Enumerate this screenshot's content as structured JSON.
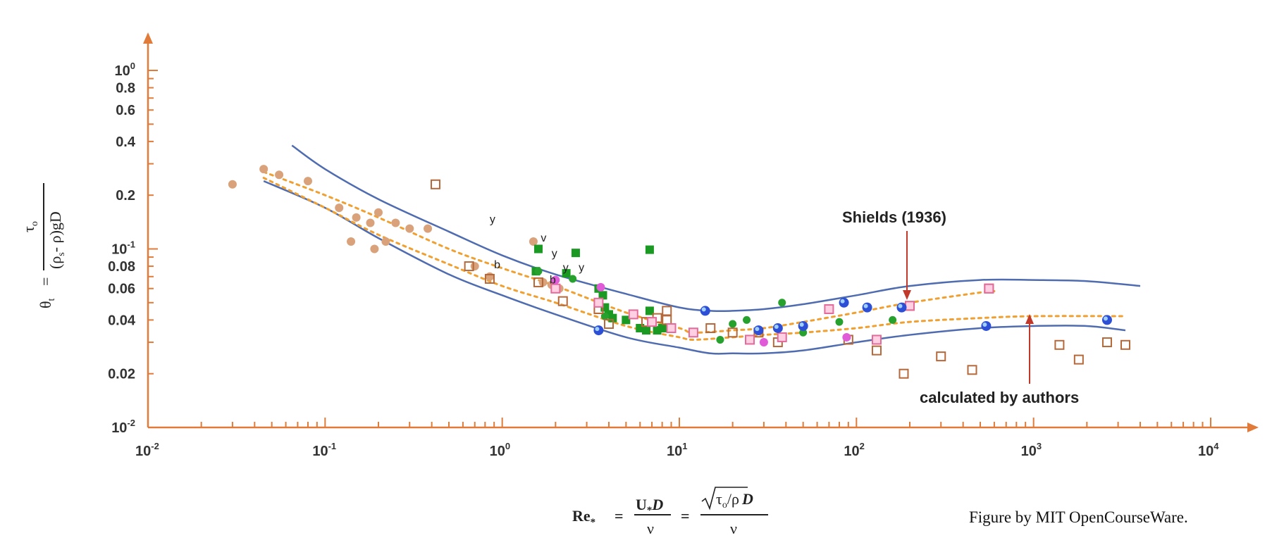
{
  "chart_data": {
    "type": "scatter",
    "title": "",
    "x_scale": "log",
    "y_scale": "log",
    "xlim": [
      0.01,
      10000
    ],
    "ylim": [
      0.01,
      1.0
    ],
    "x_ticks": [
      {
        "value": 0.01,
        "base": "10",
        "exp": "-2"
      },
      {
        "value": 0.1,
        "base": "10",
        "exp": "-1"
      },
      {
        "value": 1,
        "base": "10",
        "exp": "0"
      },
      {
        "value": 10,
        "base": "10",
        "exp": "1"
      },
      {
        "value": 100,
        "base": "10",
        "exp": "2"
      },
      {
        "value": 1000,
        "base": "10",
        "exp": "3"
      },
      {
        "value": 10000,
        "base": "10",
        "exp": "4"
      }
    ],
    "y_ticks": [
      {
        "value": 1.0,
        "base": "10",
        "exp": "0"
      },
      {
        "value": 0.8,
        "label": "0.8"
      },
      {
        "value": 0.6,
        "label": "0.6"
      },
      {
        "value": 0.4,
        "label": "0.4"
      },
      {
        "value": 0.2,
        "label": "0.2"
      },
      {
        "value": 0.1,
        "base": "10",
        "exp": "-1"
      },
      {
        "value": 0.08,
        "label": "0.08"
      },
      {
        "value": 0.06,
        "label": "0.06"
      },
      {
        "value": 0.04,
        "label": "0.04"
      },
      {
        "value": 0.02,
        "label": "0.02"
      },
      {
        "value": 0.01,
        "base": "10",
        "exp": "-2"
      }
    ],
    "xlabel": {
      "lhs": "Re",
      "lhs_sub": "*",
      "eq": "=",
      "frac1_num": "U",
      "frac1_num_sub": "*",
      "frac1_num_rest": "D",
      "frac1_den": "ν",
      "frac2_num_a": "τ",
      "frac2_num_a_sub": "o",
      "frac2_num_b": "/ρ",
      "frac2_num_c": "D",
      "frac2_den": "ν"
    },
    "ylabel": {
      "lhs": "θ",
      "lhs_sub": "t",
      "eq": "=",
      "num": "τ",
      "num_sub": "o",
      "den_a": "(ρ",
      "den_a_sub": "s",
      "den_b": "- ρ)gD"
    },
    "annotations": [
      {
        "text": "Shields (1936)",
        "x": 190,
        "y": 0.052
      },
      {
        "text": "calculated by authors",
        "x": 1000,
        "y": 0.043
      }
    ],
    "credit": "Figure by MIT OpenCourseWare.",
    "colors": {
      "axis": "#e07b3a",
      "curve": "#4f6cb0",
      "fit": "#f0a030"
    },
    "series": [
      {
        "style": "envelope-upper",
        "x": [
          0.065,
          0.1,
          0.2,
          0.5,
          1,
          2,
          5,
          10,
          15,
          20,
          30,
          50,
          100,
          200,
          500,
          1000,
          2000,
          4000
        ],
        "y": [
          0.38,
          0.28,
          0.19,
          0.125,
          0.092,
          0.072,
          0.056,
          0.047,
          0.045,
          0.045,
          0.046,
          0.049,
          0.055,
          0.062,
          0.067,
          0.067,
          0.066,
          0.062
        ]
      },
      {
        "style": "envelope-lower",
        "x": [
          0.045,
          0.1,
          0.2,
          0.5,
          1,
          2,
          5,
          10,
          15,
          20,
          30,
          50,
          100,
          200,
          500,
          1000,
          2000,
          3300
        ],
        "y": [
          0.24,
          0.17,
          0.115,
          0.072,
          0.055,
          0.043,
          0.032,
          0.028,
          0.026,
          0.026,
          0.026,
          0.027,
          0.03,
          0.033,
          0.036,
          0.037,
          0.037,
          0.035
        ]
      },
      {
        "style": "fit-upper",
        "x": [
          0.045,
          0.1,
          0.2,
          0.5,
          1,
          2,
          5,
          10,
          12,
          20,
          30,
          50,
          100,
          200,
          500,
          600
        ],
        "y": [
          0.27,
          0.2,
          0.15,
          0.1,
          0.078,
          0.062,
          0.044,
          0.036,
          0.034,
          0.035,
          0.036,
          0.039,
          0.044,
          0.05,
          0.057,
          0.058
        ]
      },
      {
        "style": "fit-lower",
        "x": [
          0.045,
          0.1,
          0.2,
          0.5,
          1,
          2,
          5,
          10,
          12,
          20,
          30,
          50,
          100,
          200,
          500,
          1000,
          3300
        ],
        "y": [
          0.25,
          0.17,
          0.12,
          0.082,
          0.062,
          0.05,
          0.037,
          0.032,
          0.031,
          0.032,
          0.033,
          0.034,
          0.036,
          0.039,
          0.041,
          0.042,
          0.042
        ]
      },
      {
        "style": "dot-tan",
        "x": [
          0.03,
          0.045,
          0.055,
          0.08,
          0.12,
          0.15,
          0.18,
          0.2,
          0.22,
          0.25,
          0.3,
          0.38,
          0.14,
          0.7,
          0.85,
          1.5,
          1.7,
          1.9,
          2.1,
          0.19
        ],
        "y": [
          0.23,
          0.28,
          0.26,
          0.24,
          0.17,
          0.15,
          0.14,
          0.16,
          0.11,
          0.14,
          0.13,
          0.13,
          0.11,
          0.08,
          0.07,
          0.11,
          0.065,
          0.063,
          0.06,
          0.1
        ]
      },
      {
        "style": "square-green",
        "x": [
          1.6,
          1.55,
          2.3,
          2.6,
          3.5,
          3.8,
          4.0,
          4.2,
          5.0,
          5.5,
          6.0,
          6.5,
          6.8,
          7.5,
          8.0,
          6.8,
          3.7
        ],
        "y": [
          0.1,
          0.075,
          0.073,
          0.095,
          0.06,
          0.047,
          0.043,
          0.041,
          0.04,
          0.043,
          0.036,
          0.035,
          0.099,
          0.035,
          0.036,
          0.045,
          0.055
        ]
      },
      {
        "style": "dot-green",
        "x": [
          1.6,
          2.5,
          3.8,
          17,
          20,
          24,
          38,
          50,
          80,
          160
        ],
        "y": [
          0.075,
          0.068,
          0.042,
          0.031,
          0.038,
          0.04,
          0.05,
          0.034,
          0.039,
          0.04
        ]
      },
      {
        "style": "square-tan",
        "x": [
          0.42,
          0.65,
          0.85,
          1.6,
          2.2,
          3.5,
          4.0,
          6.5,
          7.5,
          8.5,
          8.5,
          15,
          20,
          28,
          36,
          90,
          130,
          185,
          200,
          300,
          450,
          560,
          1400,
          1800,
          2600,
          3300
        ],
        "y": [
          0.23,
          0.08,
          0.068,
          0.065,
          0.051,
          0.046,
          0.038,
          0.039,
          0.041,
          0.045,
          0.04,
          0.036,
          0.034,
          0.034,
          0.03,
          0.031,
          0.027,
          0.02,
          0.048,
          0.025,
          0.021,
          0.06,
          0.029,
          0.024,
          0.03,
          0.029
        ]
      },
      {
        "style": "square-pink",
        "x": [
          2.0,
          3.5,
          5.5,
          7.0,
          9.0,
          12,
          25,
          38,
          70,
          130,
          200,
          560
        ],
        "y": [
          0.06,
          0.05,
          0.043,
          0.039,
          0.036,
          0.034,
          0.031,
          0.032,
          0.046,
          0.031,
          0.048,
          0.06
        ]
      },
      {
        "style": "dot-blue",
        "x": [
          3.5,
          14,
          28,
          36,
          50,
          85,
          115,
          180,
          540,
          2600
        ],
        "y": [
          0.035,
          0.045,
          0.035,
          0.036,
          0.037,
          0.05,
          0.047,
          0.047,
          0.037,
          0.04
        ]
      },
      {
        "style": "dot-magenta",
        "x": [
          2.0,
          3.6,
          30,
          88
        ],
        "y": [
          0.067,
          0.061,
          0.03,
          0.032
        ]
      }
    ],
    "point_labels": [
      {
        "text": "y",
        "x": 0.85,
        "y": 0.14
      },
      {
        "text": "v",
        "x": 1.65,
        "y": 0.11
      },
      {
        "text": "y",
        "x": 1.9,
        "y": 0.09
      },
      {
        "text": "y",
        "x": 2.2,
        "y": 0.075
      },
      {
        "text": "y",
        "x": 2.7,
        "y": 0.075
      },
      {
        "text": "b",
        "x": 0.9,
        "y": 0.078
      },
      {
        "text": "b",
        "x": 1.85,
        "y": 0.064
      }
    ]
  }
}
